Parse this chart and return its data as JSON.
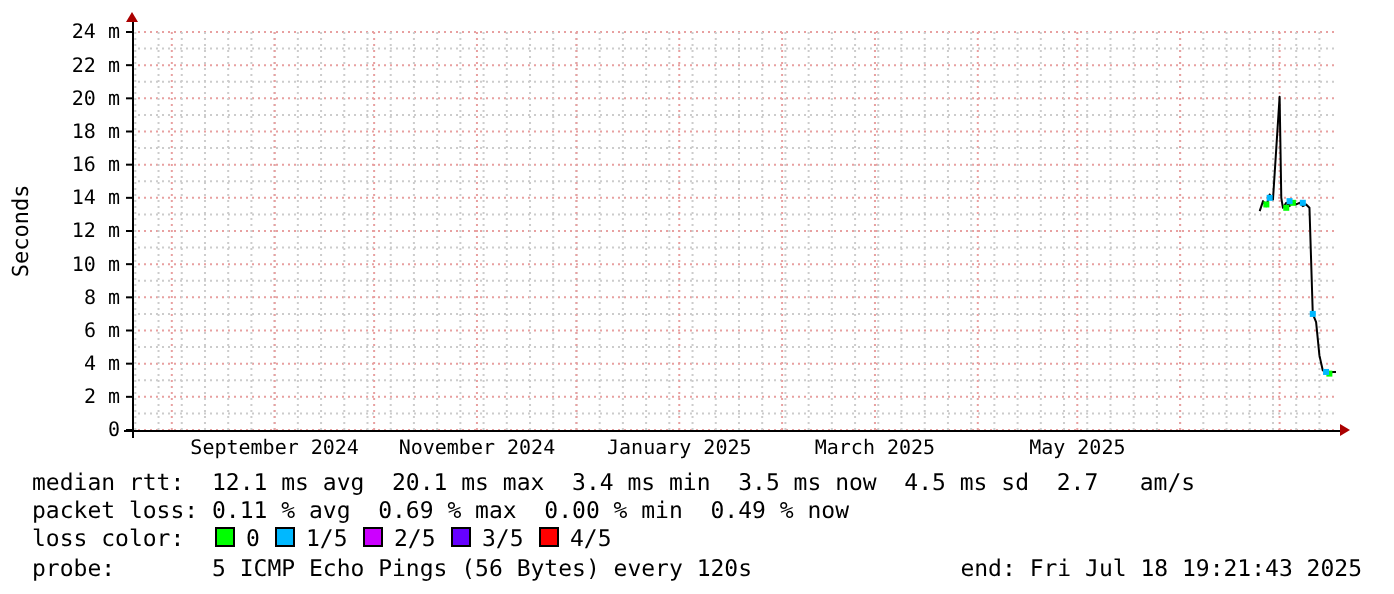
{
  "chart_data": {
    "type": "line",
    "ylabel": "Seconds",
    "legend_title": "loss color:",
    "legend": "bottom",
    "grid": true,
    "marker": "none",
    "line_style": "solid",
    "xlim": [
      "2024-07-20",
      "2025-07-18"
    ],
    "xticks": [
      {
        "value": "2024-09-01",
        "label": "September 2024"
      },
      {
        "value": "2024-11-01",
        "label": "November 2024"
      },
      {
        "value": "2025-01-01",
        "label": "January 2025"
      },
      {
        "value": "2025-03-01",
        "label": "March 2025"
      },
      {
        "value": "2025-05-01",
        "label": "May 2025"
      }
    ],
    "ylim": [
      0,
      24
    ],
    "yticks": [
      0,
      {
        "value": 2,
        "label": "2 m"
      },
      {
        "value": 4,
        "label": "4 m"
      },
      {
        "value": 6,
        "label": "6 m"
      },
      {
        "value": 8,
        "label": "8 m"
      },
      {
        "value": 10,
        "label": "10 m"
      },
      {
        "value": 12,
        "label": "12 m"
      },
      {
        "value": 14,
        "label": "14 m"
      },
      {
        "value": 16,
        "label": "16 m"
      },
      {
        "value": 18,
        "label": "18 m"
      },
      {
        "value": 20,
        "label": "20 m"
      },
      {
        "value": 22,
        "label": "22 m"
      },
      {
        "value": 24,
        "label": "24 m"
      }
    ],
    "series": [
      {
        "color": "#000000",
        "x": [
          "2025-06-25",
          "2025-06-26",
          "2025-06-27",
          "2025-06-28",
          "2025-06-29",
          "2025-06-30",
          "2025-07-01",
          "2025-07-01T12:00",
          "2025-07-02",
          "2025-07-03",
          "2025-07-04",
          "2025-07-05",
          "2025-07-06",
          "2025-07-07",
          "2025-07-08",
          "2025-07-09",
          "2025-07-10",
          "2025-07-11",
          "2025-07-12",
          "2025-07-13",
          "2025-07-14",
          "2025-07-15",
          "2025-07-16",
          "2025-07-17",
          "2025-07-18"
        ],
        "values": [
          13.2,
          13.8,
          13.5,
          14.2,
          13.9,
          17.0,
          20.1,
          14.0,
          13.4,
          13.7,
          13.5,
          13.8,
          13.6,
          13.7,
          13.5,
          13.6,
          13.4,
          7.0,
          6.5,
          4.5,
          3.6,
          3.5,
          3.4,
          3.5,
          3.5
        ]
      },
      {
        "type": "scatter",
        "name": "0",
        "color": "#00ff00",
        "marker": "square",
        "x": [
          "2025-06-27",
          "2025-07-03",
          "2025-07-05",
          "2025-07-16"
        ],
        "values": [
          13.6,
          13.4,
          13.7,
          3.4
        ]
      },
      {
        "type": "scatter",
        "name": "1/5",
        "color": "#00b8ff",
        "marker": "square",
        "x": [
          "2025-06-28",
          "2025-07-04",
          "2025-07-08",
          "2025-07-11",
          "2025-07-15"
        ],
        "values": [
          14.0,
          13.8,
          13.7,
          7.0,
          3.5
        ]
      },
      {
        "type": "scatter",
        "name": "2/5",
        "color": "#cc00ff",
        "marker": "square"
      },
      {
        "type": "scatter",
        "name": "3/5",
        "color": "#6600ff",
        "marker": "square"
      },
      {
        "type": "scatter",
        "name": "4/5",
        "color": "#ff0000",
        "marker": "square"
      }
    ],
    "annotations": [
      "median rtt:  12.1 ms avg  20.1 ms max  3.4 ms min  3.5 ms now  4.5 ms sd  2.7   am/s",
      "packet loss: 0.11 % avg  0.69 % max  0.00 % min  0.49 % now",
      "probe:       5 ICMP Echo Pings (56 Bytes) every 120s",
      "end: Fri Jul 18 19:21:43 2025"
    ]
  }
}
